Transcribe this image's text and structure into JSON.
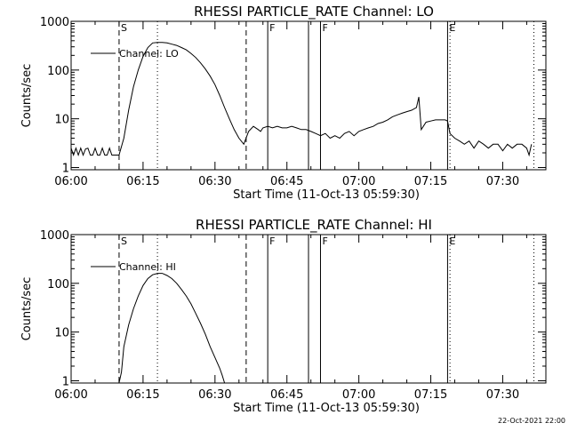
{
  "footer": {
    "timestamp": "22-Oct-2021 22:00"
  },
  "chart_data": [
    {
      "type": "line",
      "title": "RHESSI PARTICLE_RATE Channel: LO",
      "xlabel": "Start Time (11-Oct-13 05:59:30)",
      "ylabel": "Counts/sec",
      "yscale": "log",
      "xlim": [
        0,
        99
      ],
      "ylim": [
        0.9,
        1000
      ],
      "x_ticks": [
        0,
        15,
        30,
        45,
        60,
        75,
        90
      ],
      "x_tick_labels": [
        "06:00",
        "06:15",
        "06:30",
        "06:45",
        "07:00",
        "07:15",
        "07:30"
      ],
      "y_ticks": [
        1,
        10,
        100,
        1000
      ],
      "y_tick_labels": [
        "1",
        "10",
        "100",
        "1000"
      ],
      "legend": {
        "label": "Channel: LO",
        "position": "top-left"
      },
      "markers": [
        {
          "x": 10,
          "style": "dashed",
          "label": "S"
        },
        {
          "x": 18,
          "style": "dotted",
          "label": ""
        },
        {
          "x": 36.5,
          "style": "dashed",
          "label": ""
        },
        {
          "x": 41,
          "style": "solid",
          "label": "F"
        },
        {
          "x": 49.5,
          "style": "solid",
          "label": ""
        },
        {
          "x": 52,
          "style": "solid",
          "label": "F"
        },
        {
          "x": 78.5,
          "style": "solid",
          "label": "E"
        },
        {
          "x": 79,
          "style": "dotted",
          "label": ""
        },
        {
          "x": 96.5,
          "style": "dotted",
          "label": ""
        }
      ],
      "series": [
        {
          "name": "Channel: LO",
          "x": [
            0,
            0.5,
            1,
            1.5,
            2,
            2.5,
            3,
            3.5,
            4,
            4.5,
            5,
            5.5,
            6,
            6.5,
            7,
            7.5,
            8,
            8.5,
            9,
            9.5,
            10,
            11,
            12,
            13,
            14,
            15,
            16,
            17,
            18,
            19,
            20,
            21,
            22,
            23,
            24,
            25,
            26,
            27,
            28,
            29,
            30,
            31,
            32,
            33,
            34,
            35,
            36,
            37,
            38,
            39,
            39.5,
            40,
            41,
            42,
            43,
            44,
            45,
            46,
            47,
            48,
            49,
            50,
            51,
            52,
            53,
            54,
            55,
            56,
            57,
            58,
            59,
            60,
            61,
            62,
            63,
            64,
            65,
            66,
            67,
            68,
            69,
            70,
            71,
            72,
            72.5,
            73,
            74,
            75,
            76,
            77,
            78,
            78.5,
            79,
            80,
            81,
            82,
            83,
            84,
            85,
            86,
            87,
            88,
            89,
            90,
            91,
            92,
            93,
            94,
            95,
            95.5,
            96
          ],
          "values": [
            2.5,
            1.8,
            2.5,
            1.8,
            2.5,
            1.8,
            2.4,
            2.5,
            1.8,
            1.8,
            2.5,
            1.8,
            1.8,
            2.5,
            1.8,
            1.8,
            2.5,
            1.8,
            1.8,
            1.8,
            1.8,
            4,
            15,
            45,
            100,
            190,
            290,
            360,
            370,
            370,
            360,
            340,
            320,
            290,
            260,
            220,
            180,
            140,
            105,
            75,
            50,
            30,
            17,
            10,
            6,
            4,
            3,
            5.5,
            7,
            6,
            5.5,
            6.5,
            7,
            6.5,
            7,
            6.5,
            6.5,
            7,
            6.5,
            6,
            6,
            5.5,
            5,
            4.5,
            5,
            4,
            4.5,
            4,
            5,
            5.5,
            4.5,
            5.5,
            6,
            6.5,
            7,
            8,
            8.5,
            9.5,
            11,
            12,
            13,
            14,
            15,
            17,
            28,
            6,
            8.5,
            9,
            9.5,
            9.5,
            9.5,
            9,
            5,
            4,
            3.5,
            3,
            3.5,
            2.5,
            3.5,
            3,
            2.5,
            3,
            3,
            2.2,
            3,
            2.5,
            3,
            3,
            2.5,
            1.8,
            3
          ]
        }
      ]
    },
    {
      "type": "line",
      "title": "RHESSI PARTICLE_RATE Channel: HI",
      "xlabel": "Start Time (11-Oct-13 05:59:30)",
      "ylabel": "Counts/sec",
      "yscale": "log",
      "xlim": [
        0,
        99
      ],
      "ylim": [
        0.9,
        1000
      ],
      "x_ticks": [
        0,
        15,
        30,
        45,
        60,
        75,
        90
      ],
      "x_tick_labels": [
        "06:00",
        "06:15",
        "06:30",
        "06:45",
        "07:00",
        "07:15",
        "07:30"
      ],
      "y_ticks": [
        1,
        10,
        100,
        1000
      ],
      "y_tick_labels": [
        "1",
        "10",
        "100",
        "1000"
      ],
      "legend": {
        "label": "Channel: HI",
        "position": "top-left"
      },
      "markers": [
        {
          "x": 10,
          "style": "dashed",
          "label": "S"
        },
        {
          "x": 18,
          "style": "dotted",
          "label": ""
        },
        {
          "x": 36.5,
          "style": "dashed",
          "label": ""
        },
        {
          "x": 41,
          "style": "solid",
          "label": "F"
        },
        {
          "x": 49.5,
          "style": "solid",
          "label": ""
        },
        {
          "x": 52,
          "style": "solid",
          "label": "F"
        },
        {
          "x": 78.5,
          "style": "solid",
          "label": "E"
        },
        {
          "x": 79,
          "style": "dotted",
          "label": ""
        },
        {
          "x": 96.5,
          "style": "dotted",
          "label": ""
        }
      ],
      "series": [
        {
          "name": "Channel: HI",
          "x": [
            10,
            10.5,
            11,
            12,
            13,
            14,
            15,
            16,
            17,
            18,
            19,
            20,
            21,
            22,
            23,
            24,
            25,
            26,
            27,
            28,
            29,
            30,
            31,
            31.5,
            32
          ],
          "values": [
            0.9,
            1.5,
            5,
            14,
            30,
            55,
            90,
            125,
            150,
            160,
            160,
            145,
            125,
            100,
            75,
            55,
            38,
            24,
            15,
            9,
            5,
            3,
            1.8,
            1.3,
            0.9
          ]
        }
      ]
    }
  ]
}
